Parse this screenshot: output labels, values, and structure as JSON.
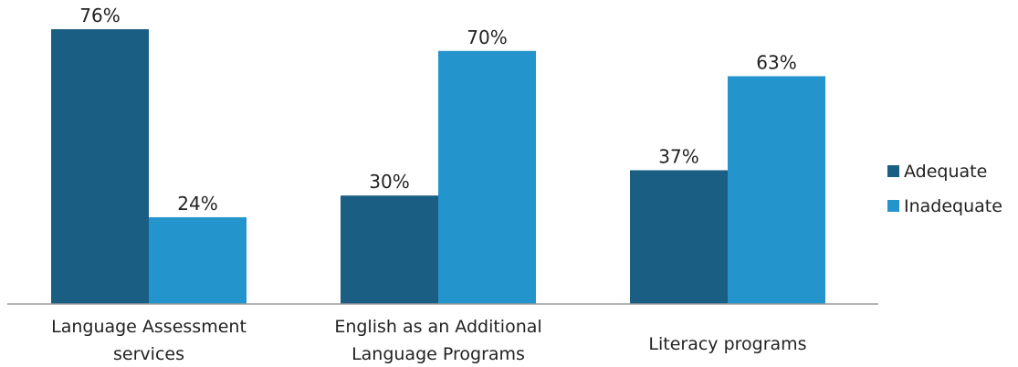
{
  "chart_data": {
    "type": "bar",
    "categories": [
      [
        "Language Assessment",
        "services"
      ],
      [
        "English as an Additional",
        "Language Programs"
      ],
      [
        "Literacy programs"
      ]
    ],
    "series": [
      {
        "name": "Adequate",
        "values": [
          76,
          30,
          37
        ],
        "labels": [
          "76%",
          "30%",
          "37%"
        ],
        "color": "#1b5e84"
      },
      {
        "name": "Inadequate",
        "values": [
          24,
          70,
          63
        ],
        "labels": [
          "24%",
          "70%",
          "63%"
        ],
        "color": "#2494cc"
      }
    ],
    "ylim": [
      0,
      80
    ],
    "grid": false,
    "legend": "right",
    "axis_color": "#9a9a9a"
  }
}
